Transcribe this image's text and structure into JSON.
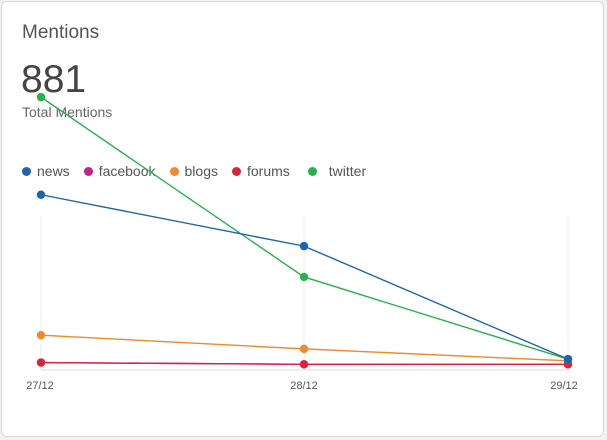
{
  "card": {
    "title": "Mentions",
    "total_value": "881",
    "total_label": "Total Mentions"
  },
  "legend": [
    {
      "label": "news",
      "color": "#1f64b0"
    },
    {
      "label": "facebook",
      "color": "#c2238a"
    },
    {
      "label": "blogs",
      "color": "#ee8a2c"
    },
    {
      "label": "forums",
      "color": "#d9253a"
    },
    {
      "label": "twitter",
      "color": "#27b24a"
    }
  ],
  "chart_data": {
    "type": "line",
    "categories": [
      "27/12",
      "28/12",
      "29/12"
    ],
    "ylim": [
      0,
      160
    ],
    "grid": "vertical",
    "series": [
      {
        "name": "news",
        "color": "#1f64b0",
        "values": [
          100,
          70,
          4
        ]
      },
      {
        "name": "facebook",
        "color": "#c2238a",
        "values": [
          2,
          1,
          1
        ]
      },
      {
        "name": "blogs",
        "color": "#ee8a2c",
        "values": [
          18,
          10,
          3
        ]
      },
      {
        "name": "forums",
        "color": "#d9253a",
        "values": [
          2,
          1,
          1
        ]
      },
      {
        "name": "twitter",
        "color": "#27b24a",
        "values": [
          157,
          52,
          4
        ]
      }
    ]
  }
}
